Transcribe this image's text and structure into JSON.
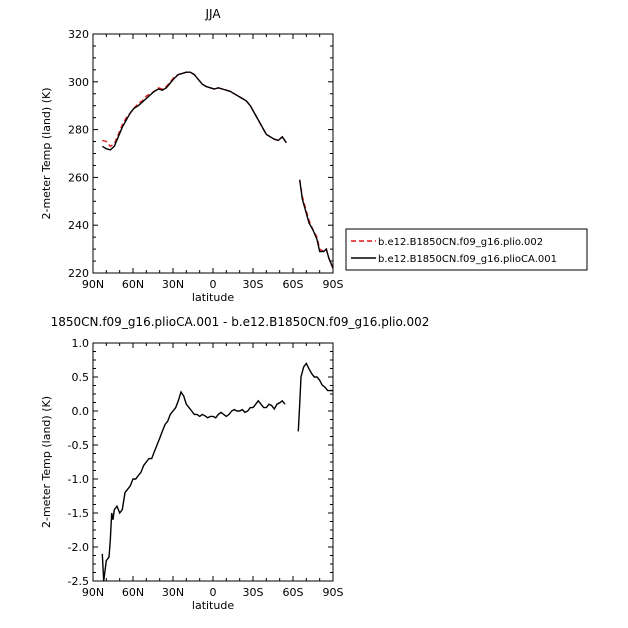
{
  "chart_data": [
    {
      "type": "line",
      "title": "JJA",
      "xlabel": "latitude",
      "ylabel": "2-meter Temp (land) (K)",
      "xlim": [
        90,
        -90
      ],
      "ylim": [
        220,
        320
      ],
      "xticks": [
        90,
        60,
        30,
        0,
        -30,
        -60,
        -90
      ],
      "xtick_labels": [
        "90N",
        "60N",
        "30N",
        "0",
        "30S",
        "60S",
        "90S"
      ],
      "yticks": [
        220,
        240,
        260,
        280,
        300,
        320
      ],
      "ytick_labels": [
        "220",
        "240",
        "260",
        "280",
        "300",
        "320"
      ],
      "legend_position": "right",
      "series": [
        {
          "name": "b.e12.B1850CN.f09_g16.plio.002",
          "color": "#e41a1c",
          "dash": "dashed",
          "segments": [
            [
              [
                83,
                275.5
              ],
              [
                80,
                275
              ],
              [
                77,
                273
              ],
              [
                74,
                274
              ],
              [
                71,
                278
              ],
              [
                68,
                282
              ],
              [
                65,
                285
              ],
              [
                62,
                287
              ],
              [
                59,
                289
              ],
              [
                56,
                291
              ],
              [
                53,
                292
              ],
              [
                50,
                294
              ],
              [
                47,
                295
              ],
              [
                44,
                296
              ],
              [
                41,
                297.5
              ],
              [
                38,
                297
              ],
              [
                35,
                298
              ],
              [
                32,
                300
              ],
              [
                29,
                302
              ],
              [
                26,
                303
              ],
              [
                23,
                303.5
              ],
              [
                20,
                304
              ],
              [
                17,
                304
              ],
              [
                14,
                303
              ],
              [
                11,
                301
              ],
              [
                8,
                299
              ],
              [
                5,
                298
              ],
              [
                2,
                297.5
              ],
              [
                -1,
                297
              ],
              [
                -4,
                297.5
              ],
              [
                -7,
                297
              ],
              [
                -10,
                296.5
              ],
              [
                -13,
                296
              ],
              [
                -16,
                295
              ],
              [
                -19,
                294
              ],
              [
                -22,
                293
              ],
              [
                -25,
                292
              ],
              [
                -28,
                290
              ],
              [
                -31,
                287
              ],
              [
                -34,
                284
              ],
              [
                -37,
                281
              ],
              [
                -40,
                278
              ],
              [
                -43,
                277
              ],
              [
                -46,
                276
              ],
              [
                -49,
                275.5
              ],
              [
                -52,
                277
              ],
              [
                -55,
                274.5
              ]
            ],
            [
              [
                -65,
                259
              ],
              [
                -67,
                252
              ],
              [
                -70,
                246
              ],
              [
                -72,
                242
              ],
              [
                -75,
                238
              ],
              [
                -78,
                235
              ],
              [
                -80,
                230
              ],
              [
                -83,
                229
              ],
              [
                -85,
                230
              ],
              [
                -87,
                226
              ],
              [
                -90,
                222
              ]
            ]
          ]
        },
        {
          "name": "b.e12.B1850CN.f09_g16.plioCA.001",
          "color": "#000000",
          "dash": "solid",
          "segments": [
            [
              [
                83,
                273
              ],
              [
                80,
                272
              ],
              [
                77,
                271.5
              ],
              [
                74,
                273
              ],
              [
                71,
                277
              ],
              [
                68,
                281
              ],
              [
                65,
                284
              ],
              [
                62,
                287
              ],
              [
                59,
                289
              ],
              [
                56,
                290
              ],
              [
                53,
                291.5
              ],
              [
                50,
                293
              ],
              [
                47,
                294.5
              ],
              [
                44,
                296
              ],
              [
                41,
                297
              ],
              [
                38,
                296.5
              ],
              [
                35,
                297.5
              ],
              [
                32,
                299.5
              ],
              [
                29,
                301.5
              ],
              [
                26,
                303
              ],
              [
                23,
                303.5
              ],
              [
                20,
                304
              ],
              [
                17,
                304
              ],
              [
                14,
                303
              ],
              [
                11,
                301
              ],
              [
                8,
                299
              ],
              [
                5,
                298
              ],
              [
                2,
                297.5
              ],
              [
                -1,
                297
              ],
              [
                -4,
                297.5
              ],
              [
                -7,
                297
              ],
              [
                -10,
                296.5
              ],
              [
                -13,
                296
              ],
              [
                -16,
                295
              ],
              [
                -19,
                294
              ],
              [
                -22,
                293
              ],
              [
                -25,
                292
              ],
              [
                -28,
                290
              ],
              [
                -31,
                287
              ],
              [
                -34,
                284
              ],
              [
                -37,
                281
              ],
              [
                -40,
                278
              ],
              [
                -43,
                277
              ],
              [
                -46,
                276
              ],
              [
                -49,
                275.5
              ],
              [
                -52,
                277
              ],
              [
                -55,
                274.5
              ]
            ],
            [
              [
                -65,
                259
              ],
              [
                -67,
                251
              ],
              [
                -70,
                245
              ],
              [
                -72,
                241
              ],
              [
                -75,
                238
              ],
              [
                -78,
                234
              ],
              [
                -80,
                229
              ],
              [
                -83,
                229
              ],
              [
                -85,
                230
              ],
              [
                -87,
                226
              ],
              [
                -90,
                222
              ]
            ]
          ]
        }
      ]
    },
    {
      "type": "line",
      "title": "1850CN.f09_g16.plioCA.001 - b.e12.B1850CN.f09_g16.plio.002",
      "xlabel": "latitude",
      "ylabel": "2-meter Temp (land) (K)",
      "xlim": [
        90,
        -90
      ],
      "ylim": [
        -2.5,
        1.0
      ],
      "xticks": [
        90,
        60,
        30,
        0,
        -30,
        -60,
        -90
      ],
      "xtick_labels": [
        "90N",
        "60N",
        "30N",
        "0",
        "30S",
        "60S",
        "90S"
      ],
      "yticks": [
        -2.5,
        -2.0,
        -1.5,
        -1.0,
        -0.5,
        0.0,
        0.5,
        1.0
      ],
      "ytick_labels": [
        "-2.5",
        "-2.0",
        "-1.5",
        "-1.0",
        "-0.5",
        "0.0",
        "0.5",
        "1.0"
      ],
      "series": [
        {
          "color": "#000000",
          "dash": "solid",
          "segments": [
            [
              [
                83,
                -2.1
              ],
              [
                82,
                -2.5
              ],
              [
                80,
                -2.2
              ],
              [
                78,
                -2.15
              ],
              [
                77,
                -1.9
              ],
              [
                76,
                -1.5
              ],
              [
                75,
                -1.6
              ],
              [
                74,
                -1.45
              ],
              [
                72,
                -1.4
              ],
              [
                70,
                -1.5
              ],
              [
                68,
                -1.45
              ],
              [
                66,
                -1.2
              ],
              [
                64,
                -1.15
              ],
              [
                62,
                -1.1
              ],
              [
                60,
                -1.0
              ],
              [
                58,
                -1.0
              ],
              [
                56,
                -0.95
              ],
              [
                54,
                -0.9
              ],
              [
                52,
                -0.8
              ],
              [
                50,
                -0.75
              ],
              [
                48,
                -0.7
              ],
              [
                46,
                -0.7
              ],
              [
                44,
                -0.6
              ],
              [
                42,
                -0.5
              ],
              [
                40,
                -0.4
              ],
              [
                38,
                -0.3
              ],
              [
                36,
                -0.2
              ],
              [
                34,
                -0.15
              ],
              [
                32,
                -0.05
              ],
              [
                30,
                0.0
              ],
              [
                28,
                0.05
              ],
              [
                26,
                0.15
              ],
              [
                24,
                0.28
              ],
              [
                22,
                0.22
              ],
              [
                20,
                0.1
              ],
              [
                18,
                0.05
              ],
              [
                16,
                0.0
              ],
              [
                14,
                -0.05
              ],
              [
                12,
                -0.05
              ],
              [
                10,
                -0.08
              ],
              [
                8,
                -0.05
              ],
              [
                6,
                -0.07
              ],
              [
                4,
                -0.1
              ],
              [
                2,
                -0.08
              ],
              [
                0,
                -0.08
              ],
              [
                -2,
                -0.1
              ],
              [
                -4,
                -0.05
              ],
              [
                -6,
                -0.02
              ],
              [
                -8,
                -0.05
              ],
              [
                -10,
                -0.08
              ],
              [
                -12,
                -0.05
              ],
              [
                -14,
                0.0
              ],
              [
                -16,
                0.02
              ],
              [
                -18,
                0.0
              ],
              [
                -20,
                0.0
              ],
              [
                -22,
                0.02
              ],
              [
                -24,
                -0.02
              ],
              [
                -26,
                0.0
              ],
              [
                -28,
                0.05
              ],
              [
                -30,
                0.05
              ],
              [
                -32,
                0.1
              ],
              [
                -34,
                0.15
              ],
              [
                -36,
                0.1
              ],
              [
                -38,
                0.05
              ],
              [
                -40,
                0.05
              ],
              [
                -42,
                0.1
              ],
              [
                -44,
                0.08
              ],
              [
                -46,
                0.03
              ],
              [
                -48,
                0.1
              ],
              [
                -50,
                0.12
              ],
              [
                -52,
                0.15
              ],
              [
                -54,
                0.1
              ]
            ],
            [
              [
                -64,
                -0.3
              ],
              [
                -65,
                0.1
              ],
              [
                -66,
                0.5
              ],
              [
                -68,
                0.65
              ],
              [
                -70,
                0.7
              ],
              [
                -72,
                0.62
              ],
              [
                -74,
                0.55
              ],
              [
                -76,
                0.5
              ],
              [
                -78,
                0.5
              ],
              [
                -80,
                0.45
              ],
              [
                -82,
                0.38
              ],
              [
                -84,
                0.35
              ],
              [
                -86,
                0.3
              ],
              [
                -88,
                0.3
              ],
              [
                -90,
                0.3
              ]
            ]
          ]
        }
      ]
    }
  ]
}
